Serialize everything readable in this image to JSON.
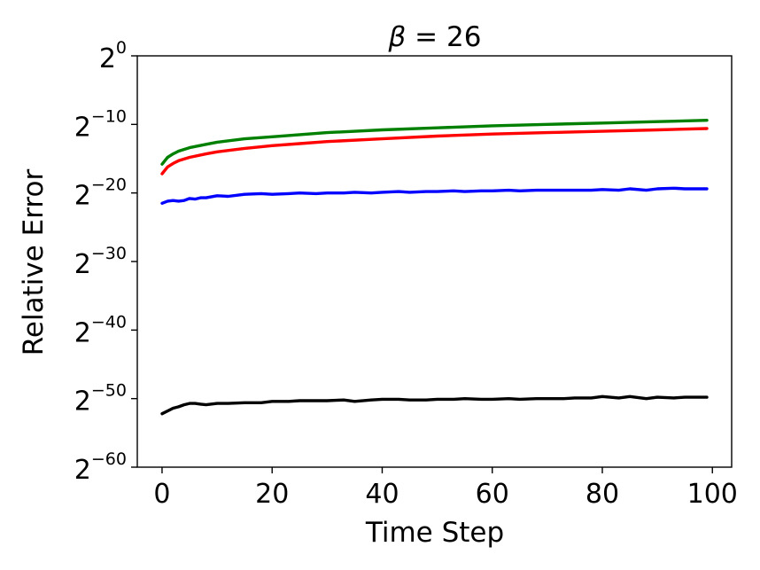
{
  "chart_data": {
    "type": "line",
    "title": "β = 26",
    "title_parts": {
      "symbol": "β",
      "equals": " = ",
      "value": "26"
    },
    "xlabel": "Time Step",
    "ylabel": "Relative Error",
    "xlim": [
      -4.5,
      103.5
    ],
    "ylim": [
      -60,
      0
    ],
    "y_scale": "log2",
    "grid": false,
    "legend": "none",
    "x_ticks": [
      {
        "value": 0,
        "label": "0"
      },
      {
        "value": 20,
        "label": "20"
      },
      {
        "value": 40,
        "label": "40"
      },
      {
        "value": 60,
        "label": "60"
      },
      {
        "value": 80,
        "label": "80"
      },
      {
        "value": 100,
        "label": "100"
      }
    ],
    "y_ticks": [
      {
        "value": 0,
        "base": "2",
        "exponent": "0"
      },
      {
        "value": -10,
        "base": "2",
        "exponent": "−10"
      },
      {
        "value": -20,
        "base": "2",
        "exponent": "−20"
      },
      {
        "value": -30,
        "base": "2",
        "exponent": "−30"
      },
      {
        "value": -40,
        "base": "2",
        "exponent": "−40"
      },
      {
        "value": -50,
        "base": "2",
        "exponent": "−50"
      },
      {
        "value": -60,
        "base": "2",
        "exponent": "−60"
      }
    ],
    "series": [
      {
        "color": "#008000",
        "x": [
          0,
          1,
          2,
          3,
          5,
          8,
          10,
          15,
          20,
          25,
          30,
          40,
          50,
          60,
          70,
          80,
          90,
          99
        ],
        "values": [
          -15.8,
          -14.8,
          -14.3,
          -13.9,
          -13.4,
          -12.9,
          -12.6,
          -12.1,
          -11.8,
          -11.5,
          -11.2,
          -10.8,
          -10.5,
          -10.2,
          -10.0,
          -9.8,
          -9.6,
          -9.4
        ]
      },
      {
        "color": "#ff0000",
        "x": [
          0,
          1,
          2,
          3,
          5,
          8,
          10,
          15,
          20,
          25,
          30,
          40,
          50,
          60,
          70,
          80,
          90,
          99
        ],
        "values": [
          -17.2,
          -16.2,
          -15.7,
          -15.3,
          -14.8,
          -14.3,
          -14.0,
          -13.5,
          -13.1,
          -12.8,
          -12.5,
          -12.1,
          -11.7,
          -11.4,
          -11.2,
          -11.0,
          -10.8,
          -10.6
        ]
      },
      {
        "color": "#0000ff",
        "x": [
          0,
          1,
          2,
          3,
          4,
          5,
          6,
          7,
          8,
          10,
          12,
          15,
          18,
          20,
          23,
          25,
          28,
          30,
          33,
          35,
          38,
          40,
          43,
          45,
          48,
          50,
          53,
          55,
          58,
          60,
          63,
          65,
          68,
          70,
          73,
          75,
          78,
          80,
          83,
          85,
          88,
          90,
          93,
          95,
          99
        ],
        "values": [
          -21.5,
          -21.2,
          -21.1,
          -21.2,
          -21.1,
          -20.8,
          -20.9,
          -20.7,
          -20.7,
          -20.4,
          -20.5,
          -20.2,
          -20.1,
          -20.2,
          -20.1,
          -20.0,
          -20.1,
          -20.0,
          -20.0,
          -19.9,
          -20.0,
          -19.9,
          -19.8,
          -19.9,
          -19.8,
          -19.8,
          -19.7,
          -19.8,
          -19.7,
          -19.7,
          -19.6,
          -19.7,
          -19.6,
          -19.6,
          -19.6,
          -19.6,
          -19.6,
          -19.5,
          -19.6,
          -19.4,
          -19.6,
          -19.4,
          -19.3,
          -19.4,
          -19.4
        ]
      },
      {
        "color": "#000000",
        "x": [
          0,
          1,
          2,
          3,
          4,
          5,
          6,
          7,
          8,
          10,
          12,
          15,
          18,
          20,
          23,
          25,
          28,
          30,
          33,
          35,
          38,
          40,
          43,
          45,
          48,
          50,
          53,
          55,
          58,
          60,
          63,
          65,
          68,
          70,
          73,
          75,
          78,
          80,
          83,
          85,
          88,
          90,
          93,
          95,
          99
        ],
        "values": [
          -52.2,
          -51.8,
          -51.4,
          -51.2,
          -50.9,
          -50.7,
          -50.7,
          -50.8,
          -50.9,
          -50.7,
          -50.7,
          -50.6,
          -50.6,
          -50.4,
          -50.4,
          -50.3,
          -50.3,
          -50.3,
          -50.2,
          -50.4,
          -50.2,
          -50.1,
          -50.1,
          -50.2,
          -50.2,
          -50.1,
          -50.1,
          -50.0,
          -50.1,
          -50.1,
          -50.0,
          -50.1,
          -50.0,
          -50.0,
          -50.0,
          -49.9,
          -49.9,
          -49.7,
          -49.9,
          -49.7,
          -50.0,
          -49.8,
          -49.9,
          -49.8,
          -49.8
        ]
      }
    ]
  }
}
